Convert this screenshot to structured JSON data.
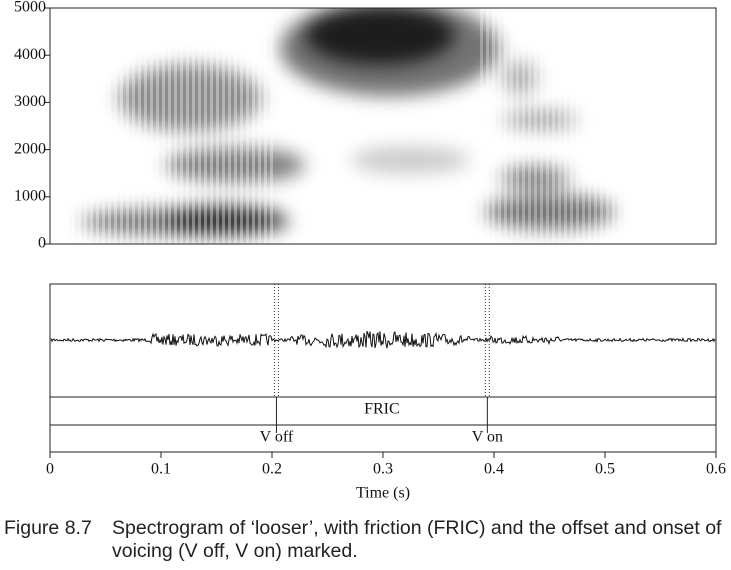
{
  "chart_data": {
    "type": "spectrogram",
    "ylim": [
      0,
      5000
    ],
    "yticks": [
      0,
      1000,
      2000,
      3000,
      4000,
      5000
    ],
    "xlim": [
      0,
      0.6
    ],
    "xticks": [
      0,
      0.1,
      0.2,
      0.3,
      0.4,
      0.5,
      0.6
    ],
    "xlabel": "Time (s)",
    "intervals": [
      {
        "label": "FRIC",
        "start": 0.204,
        "end": 0.394
      }
    ],
    "points": [
      {
        "label": "V off",
        "time": 0.204
      },
      {
        "label": "V on",
        "time": 0.394
      }
    ]
  },
  "caption": {
    "label": "Figure 8.7",
    "text": "Spectrogram of ‘looser’, with friction (FRIC) and the offset and onset of voicing (V off, V on) marked."
  }
}
